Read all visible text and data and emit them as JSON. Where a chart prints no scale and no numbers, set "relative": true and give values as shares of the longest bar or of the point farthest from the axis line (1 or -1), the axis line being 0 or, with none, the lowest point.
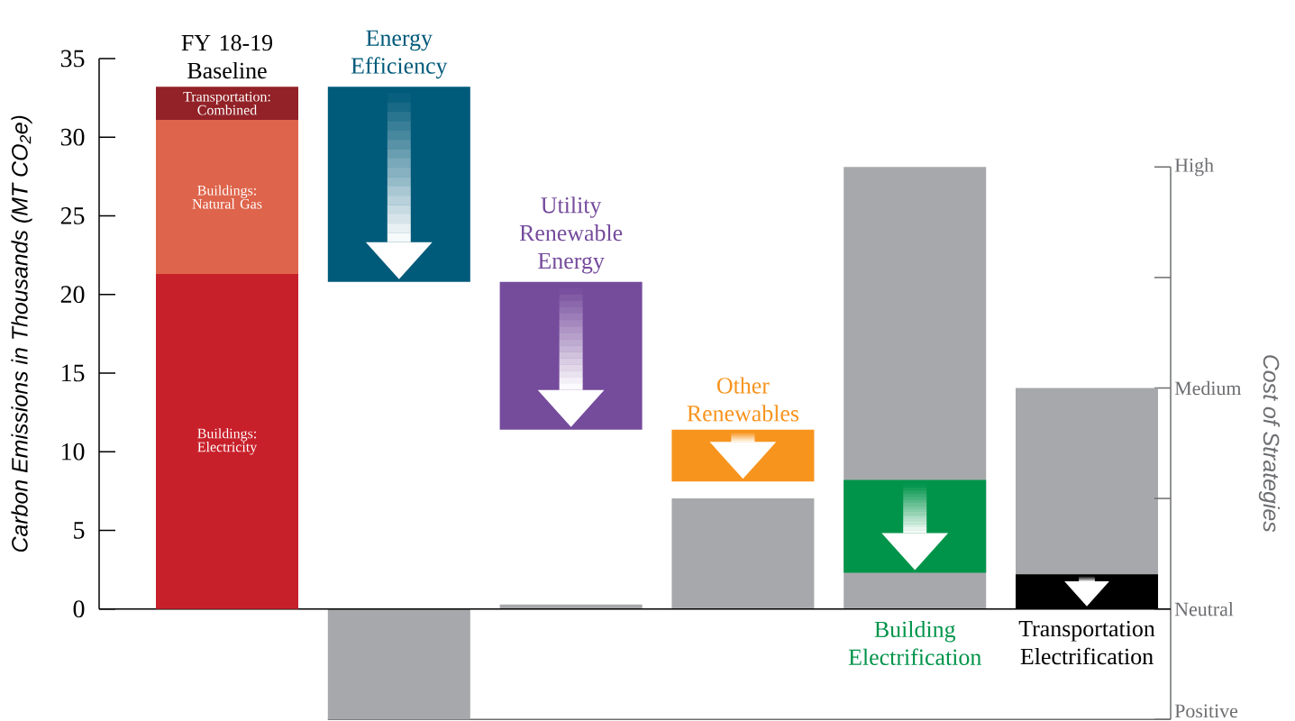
{
  "chart_data": [
    {
      "type": "bar",
      "categories": [
        "FY 18-19 Baseline",
        "Energy Efficiency",
        "Utility Renewable Energy",
        "Other Renewables",
        "Building Electrification",
        "Transportation Electrification"
      ],
      "ylabel": "Carbon Emissions in Thousands (MT CO$_{2}$e)",
      "ylim": [
        0,
        35
      ],
      "yticks": [
        0,
        5,
        10,
        15,
        20,
        25,
        30,
        35
      ],
      "stacked": true,
      "series": [
        {
          "name": "Buildings: Electricity",
          "color": "#c8202a",
          "values": [
            21.3,
            null,
            null,
            null,
            null,
            null
          ]
        },
        {
          "name": "Buildings: Natural Gas",
          "color": "#de644b",
          "values": [
            9.8,
            null,
            null,
            null,
            null,
            null
          ]
        },
        {
          "name": "Transportation: Combined",
          "color": "#922227",
          "values": [
            2.1,
            null,
            null,
            null,
            null,
            null
          ]
        },
        {
          "colors": [
            null,
            "#005a7a",
            "#754b9c",
            "#f7941e",
            "#00944a",
            "#000000"
          ],
          "base": [
            null,
            33.2,
            20.8,
            11.4,
            8.2,
            2.2
          ],
          "values": [
            null,
            -12.4,
            -9.4,
            -3.3,
            -5.9,
            -2.2
          ]
        }
      ]
    },
    {
      "type": "bar",
      "relative": true,
      "categories": [
        null,
        null,
        null,
        null,
        null,
        null
      ],
      "values": [
        null,
        -0.25,
        0.01,
        0.25,
        1,
        0.5
      ],
      "color": "#a7a8ab",
      "y2label": "Cost of Strategies",
      "y2_categories": [
        "High",
        null,
        "Medium",
        null,
        "Neutral",
        "Positive"
      ]
    }
  ]
}
